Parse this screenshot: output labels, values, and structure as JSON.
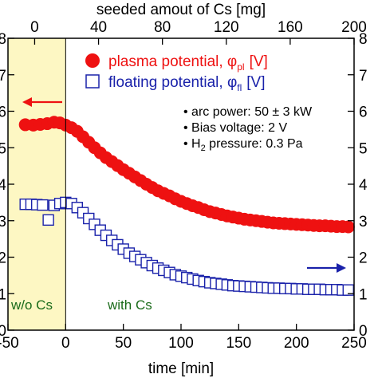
{
  "chart_data": {
    "type": "scatter",
    "xlabel": "time [min]",
    "x2label": "seeded amout of Cs [mg]",
    "xlim": [
      -50,
      250
    ],
    "x2lim": [
      -16.7,
      200
    ],
    "ylim": [
      0,
      8
    ],
    "x_ticks": [
      -50,
      0,
      50,
      100,
      150,
      200,
      250
    ],
    "x2_ticks": [
      0,
      40,
      80,
      120,
      160,
      200
    ],
    "y_ticks": [
      0,
      1,
      2,
      3,
      4,
      5,
      6,
      7,
      8
    ],
    "grid": false,
    "legend_position": "top-right",
    "shaded_region": {
      "x_from": -50,
      "x_to": 0,
      "color": "#fdf7c3"
    },
    "region_labels": [
      {
        "text": "w/o Cs",
        "color": "#1a6b1a"
      },
      {
        "text": "with Cs",
        "color": "#1a6b1a"
      }
    ],
    "series": [
      {
        "name": "plasma potential, φpl [V]",
        "legend_main": "plasma potential, φ",
        "legend_sub": "pl",
        "legend_unit": "[V]",
        "color": "#ee1111",
        "marker": "filled-circle",
        "points": [
          [
            -35,
            5.63
          ],
          [
            -28,
            5.62
          ],
          [
            -22,
            5.64
          ],
          [
            -16,
            5.66
          ],
          [
            -10,
            5.7
          ],
          [
            -5,
            5.68
          ],
          [
            0,
            5.62
          ],
          [
            5,
            5.55
          ],
          [
            10,
            5.45
          ],
          [
            15,
            5.3
          ],
          [
            20,
            5.15
          ],
          [
            25,
            5.0
          ],
          [
            30,
            4.86
          ],
          [
            35,
            4.73
          ],
          [
            40,
            4.62
          ],
          [
            45,
            4.51
          ],
          [
            50,
            4.4
          ],
          [
            55,
            4.3
          ],
          [
            60,
            4.2
          ],
          [
            65,
            4.1
          ],
          [
            70,
            4.0
          ],
          [
            75,
            3.91
          ],
          [
            80,
            3.82
          ],
          [
            85,
            3.75
          ],
          [
            90,
            3.68
          ],
          [
            95,
            3.6
          ],
          [
            100,
            3.53
          ],
          [
            105,
            3.47
          ],
          [
            110,
            3.41
          ],
          [
            115,
            3.36
          ],
          [
            120,
            3.3
          ],
          [
            125,
            3.25
          ],
          [
            130,
            3.21
          ],
          [
            135,
            3.17
          ],
          [
            140,
            3.13
          ],
          [
            145,
            3.1
          ],
          [
            150,
            3.07
          ],
          [
            155,
            3.04
          ],
          [
            160,
            3.02
          ],
          [
            165,
            3.0
          ],
          [
            170,
            2.98
          ],
          [
            175,
            2.96
          ],
          [
            180,
            2.94
          ],
          [
            185,
            2.93
          ],
          [
            190,
            2.92
          ],
          [
            195,
            2.91
          ],
          [
            200,
            2.9
          ],
          [
            205,
            2.89
          ],
          [
            210,
            2.88
          ],
          [
            215,
            2.87
          ],
          [
            220,
            2.86
          ],
          [
            225,
            2.86
          ],
          [
            230,
            2.85
          ],
          [
            235,
            2.84
          ],
          [
            240,
            2.84
          ],
          [
            245,
            2.83
          ]
        ]
      },
      {
        "name": "floating potential, φfl [V]",
        "legend_main": "floating potential, φ",
        "legend_sub": "fl",
        "legend_unit": "[V]",
        "color": "#1a22aa",
        "marker": "open-square",
        "points": [
          [
            -35,
            3.45
          ],
          [
            -30,
            3.45
          ],
          [
            -25,
            3.44
          ],
          [
            -20,
            3.43
          ],
          [
            -15,
            3.02
          ],
          [
            -10,
            3.42
          ],
          [
            -5,
            3.47
          ],
          [
            0,
            3.5
          ],
          [
            5,
            3.47
          ],
          [
            10,
            3.36
          ],
          [
            15,
            3.22
          ],
          [
            20,
            3.06
          ],
          [
            25,
            2.9
          ],
          [
            30,
            2.74
          ],
          [
            35,
            2.6
          ],
          [
            40,
            2.46
          ],
          [
            45,
            2.34
          ],
          [
            50,
            2.22
          ],
          [
            55,
            2.11
          ],
          [
            60,
            2.02
          ],
          [
            65,
            1.93
          ],
          [
            70,
            1.85
          ],
          [
            75,
            1.77
          ],
          [
            80,
            1.7
          ],
          [
            85,
            1.64
          ],
          [
            90,
            1.58
          ],
          [
            95,
            1.52
          ],
          [
            100,
            1.48
          ],
          [
            105,
            1.44
          ],
          [
            110,
            1.4
          ],
          [
            115,
            1.36
          ],
          [
            120,
            1.33
          ],
          [
            125,
            1.3
          ],
          [
            130,
            1.28
          ],
          [
            135,
            1.26
          ],
          [
            140,
            1.24
          ],
          [
            145,
            1.22
          ],
          [
            150,
            1.21
          ],
          [
            155,
            1.2
          ],
          [
            160,
            1.19
          ],
          [
            165,
            1.18
          ],
          [
            170,
            1.17
          ],
          [
            175,
            1.16
          ],
          [
            180,
            1.15
          ],
          [
            185,
            1.15
          ],
          [
            190,
            1.14
          ],
          [
            195,
            1.14
          ],
          [
            200,
            1.13
          ],
          [
            205,
            1.13
          ],
          [
            210,
            1.12
          ],
          [
            215,
            1.12
          ],
          [
            220,
            1.12
          ],
          [
            225,
            1.11
          ],
          [
            230,
            1.11
          ],
          [
            235,
            1.11
          ],
          [
            240,
            1.1
          ],
          [
            245,
            1.1
          ]
        ]
      }
    ],
    "annotations": [
      "arc power: 50 ± 3 kW",
      "Bias voltage: 2 V",
      "H2 pressure: 0.3 Pa"
    ],
    "note_h2_main": "H",
    "note_h2_sub": "2",
    "note_h2_rest": " pressure: 0.3 Pa",
    "arrows": [
      {
        "direction": "left",
        "color": "#ee1111",
        "refers_to": "plasma potential"
      },
      {
        "direction": "right",
        "color": "#1a22aa",
        "refers_to": "floating potential"
      }
    ]
  }
}
